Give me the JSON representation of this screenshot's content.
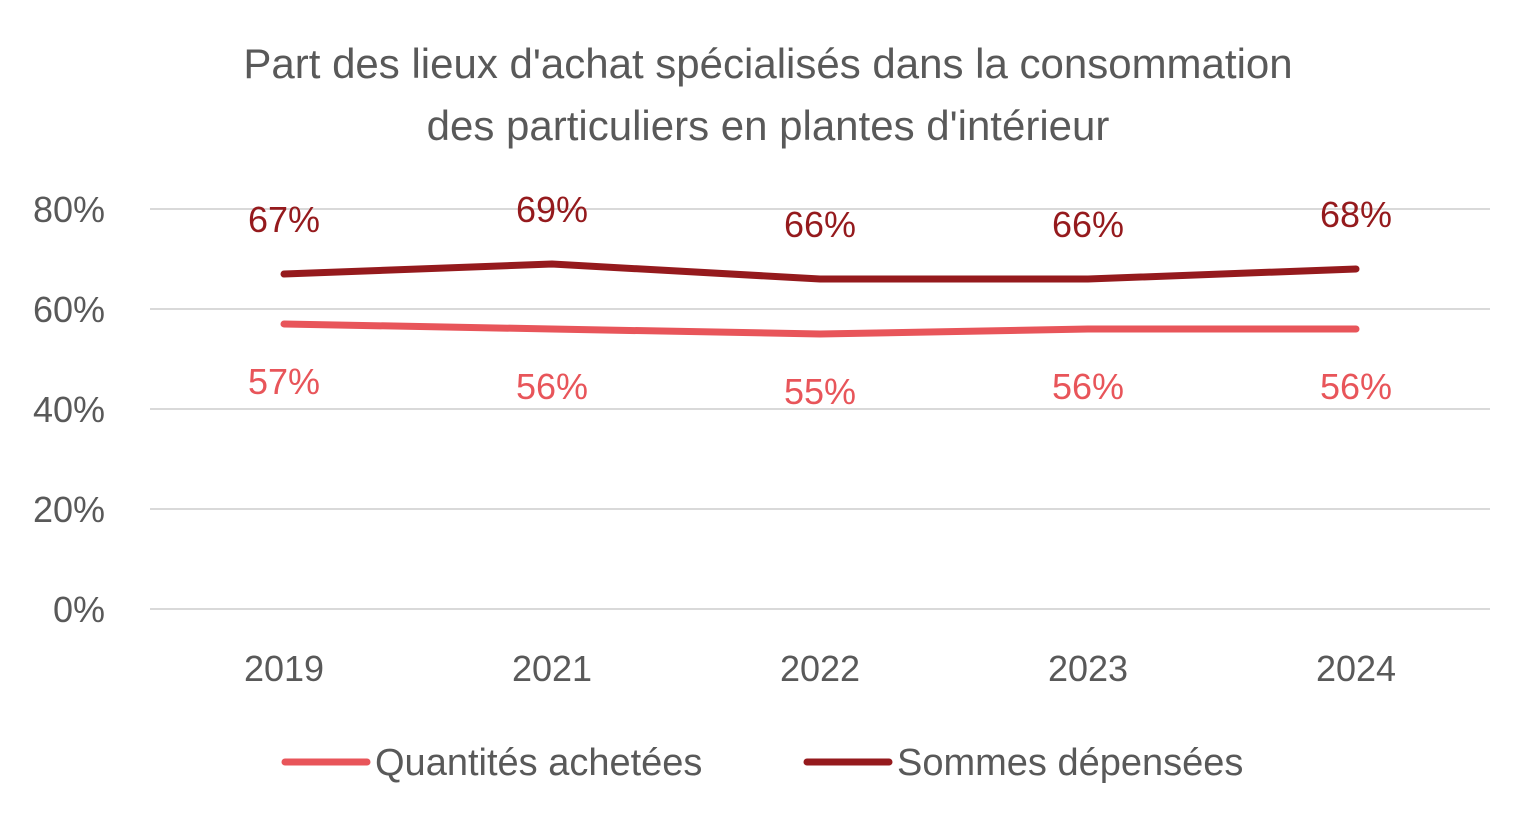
{
  "chart_data": {
    "type": "line",
    "title": [
      "Part des lieux d'achat spécialisés dans la consommation",
      "des particuliers en plantes d'intérieur"
    ],
    "categories": [
      "2019",
      "2021",
      "2022",
      "2023",
      "2024"
    ],
    "ylim": [
      0,
      80
    ],
    "yticks": [
      0,
      20,
      40,
      60,
      80
    ],
    "ytick_labels": [
      "0%",
      "20%",
      "40%",
      "60%",
      "80%"
    ],
    "grid": true,
    "legend": "bottom",
    "series": [
      {
        "name": "Quantités achetées",
        "color": "#E8555A",
        "values": [
          57,
          56,
          55,
          56,
          56
        ],
        "labels": [
          "57%",
          "56%",
          "55%",
          "56%",
          "56%"
        ],
        "label_position": "below"
      },
      {
        "name": "Sommes dépensées",
        "color": "#951A1D",
        "values": [
          67,
          69,
          66,
          66,
          68
        ],
        "labels": [
          "67%",
          "69%",
          "66%",
          "66%",
          "68%"
        ],
        "label_position": "above"
      }
    ]
  }
}
